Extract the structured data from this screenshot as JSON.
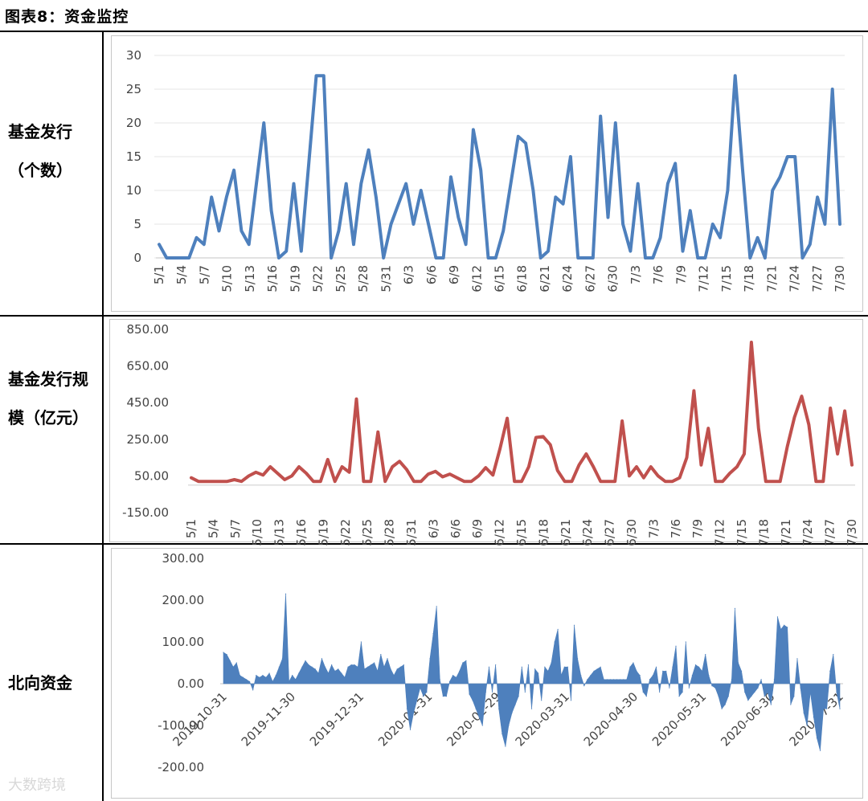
{
  "header": {
    "title": "图表8：资金监控"
  },
  "rows": {
    "fund_count_label": "基金发行（个数）",
    "fund_size_label": "基金发行规模（亿元）",
    "northbound_label": "北向资金"
  },
  "watermark": "大数跨境",
  "chart_data": [
    {
      "type": "line",
      "name": "fund-count",
      "color": "#4e80bd",
      "title": "",
      "ylim": [
        0,
        30
      ],
      "yticks": [
        0,
        5,
        10,
        15,
        20,
        25,
        30
      ],
      "ytick_labels": [
        "0",
        "5",
        "10",
        "15",
        "20",
        "25",
        "30"
      ],
      "xtick_labels": [
        "5/1",
        "5/4",
        "5/7",
        "5/10",
        "5/13",
        "5/16",
        "5/19",
        "5/22",
        "5/25",
        "5/28",
        "5/31",
        "6/3",
        "6/6",
        "6/9",
        "6/12",
        "6/15",
        "6/18",
        "6/21",
        "6/24",
        "6/27",
        "6/30",
        "7/3",
        "7/6",
        "7/9",
        "7/12",
        "7/15",
        "7/18",
        "7/21",
        "7/24",
        "7/27",
        "7/30"
      ],
      "values": [
        2,
        0,
        0,
        0,
        0,
        3,
        2,
        9,
        4,
        9,
        13,
        4,
        2,
        11,
        20,
        7,
        0,
        1,
        11,
        1,
        14,
        27,
        27,
        0,
        4,
        11,
        2,
        11,
        16,
        9,
        0,
        5,
        8,
        11,
        5,
        10,
        5,
        0,
        0,
        12,
        6,
        2,
        19,
        13,
        0,
        0,
        4,
        11,
        18,
        17,
        10,
        0,
        1,
        9,
        8,
        15,
        0,
        0,
        0,
        21,
        6,
        20,
        5,
        1,
        11,
        0,
        0,
        3,
        11,
        14,
        1,
        7,
        0,
        0,
        5,
        3,
        10,
        27,
        13,
        0,
        3,
        0,
        10,
        12,
        15,
        15,
        0,
        2,
        9,
        5,
        25,
        5
      ]
    },
    {
      "type": "line",
      "name": "fund-size",
      "color": "#c0504d",
      "title": "",
      "ylim": [
        -150,
        850
      ],
      "yticks": [
        -150,
        50,
        250,
        450,
        650,
        850
      ],
      "ytick_labels": [
        "-150.00",
        "50.00",
        "250.00",
        "450.00",
        "650.00",
        "850.00"
      ],
      "xtick_labels": [
        "5/1",
        "5/4",
        "5/7",
        "5/10",
        "5/13",
        "5/16",
        "5/19",
        "5/22",
        "5/25",
        "5/28",
        "5/31",
        "6/3",
        "6/6",
        "6/9",
        "6/12",
        "6/15",
        "6/18",
        "6/21",
        "6/24",
        "6/27",
        "6/30",
        "7/3",
        "7/6",
        "7/9",
        "7/12",
        "7/15",
        "7/18",
        "7/21",
        "7/24",
        "7/27",
        "7/30"
      ],
      "values": [
        40,
        20,
        20,
        20,
        20,
        20,
        30,
        20,
        50,
        70,
        55,
        100,
        65,
        30,
        50,
        100,
        65,
        20,
        20,
        140,
        20,
        100,
        70,
        470,
        20,
        20,
        290,
        20,
        100,
        130,
        85,
        20,
        20,
        60,
        75,
        45,
        60,
        40,
        20,
        20,
        50,
        95,
        55,
        200,
        365,
        20,
        20,
        100,
        260,
        265,
        220,
        80,
        20,
        20,
        110,
        170,
        100,
        20,
        20,
        20,
        350,
        50,
        100,
        40,
        100,
        50,
        20,
        20,
        40,
        150,
        515,
        110,
        310,
        20,
        20,
        65,
        100,
        170,
        780,
        310,
        20,
        20,
        20,
        210,
        370,
        485,
        330,
        20,
        20,
        420,
        170,
        405,
        110
      ]
    },
    {
      "type": "area",
      "name": "northbound",
      "color": "#4e80bd",
      "title": "",
      "ylim": [
        -200,
        300
      ],
      "yticks": [
        -200,
        -100,
        0,
        100,
        200,
        300
      ],
      "ytick_labels": [
        "-200.00",
        "-100.00",
        "0.00",
        "100.00",
        "200.00",
        "300.00"
      ],
      "xtick_labels": [
        "2019-10-31",
        "2019-11-30",
        "2019-12-31",
        "2020-01-31",
        "2020-02-29",
        "2020-03-31",
        "2020-04-30",
        "2020-05-31",
        "2020-06-30",
        "2020-07-31"
      ],
      "values": [
        75,
        70,
        55,
        40,
        50,
        20,
        15,
        10,
        5,
        -15,
        20,
        15,
        20,
        15,
        25,
        5,
        20,
        40,
        60,
        215,
        5,
        20,
        10,
        25,
        40,
        55,
        45,
        40,
        35,
        25,
        60,
        40,
        25,
        45,
        30,
        35,
        25,
        15,
        40,
        45,
        45,
        40,
        100,
        35,
        40,
        45,
        50,
        30,
        70,
        40,
        60,
        35,
        20,
        35,
        40,
        45,
        -60,
        -110,
        -70,
        -40,
        -10,
        -30,
        -20,
        60,
        120,
        185,
        10,
        -30,
        -30,
        5,
        20,
        15,
        30,
        50,
        55,
        -25,
        -40,
        -60,
        -80,
        -100,
        -20,
        40,
        -20,
        45,
        -60,
        -120,
        -150,
        -100,
        -70,
        -50,
        -30,
        40,
        -20,
        45,
        -60,
        35,
        25,
        -40,
        40,
        30,
        50,
        100,
        130,
        20,
        40,
        40,
        -40,
        140,
        60,
        20,
        -5,
        10,
        20,
        30,
        35,
        40,
        10,
        10,
        10,
        10,
        10,
        10,
        10,
        10,
        40,
        50,
        30,
        20,
        -20,
        -30,
        10,
        20,
        40,
        -20,
        30,
        30,
        -10,
        40,
        90,
        -30,
        -20,
        100,
        -10,
        20,
        45,
        40,
        30,
        70,
        20,
        -5,
        -10,
        -30,
        -60,
        -50,
        -30,
        10,
        180,
        50,
        30,
        -20,
        -40,
        -30,
        -20,
        -10,
        10,
        -30,
        -20,
        -50,
        10,
        160,
        130,
        140,
        135,
        -50,
        -30,
        60,
        -10,
        -70,
        -100,
        -20,
        -80,
        -130,
        -160,
        -60,
        -60,
        30,
        70,
        -20,
        -60
      ]
    }
  ]
}
